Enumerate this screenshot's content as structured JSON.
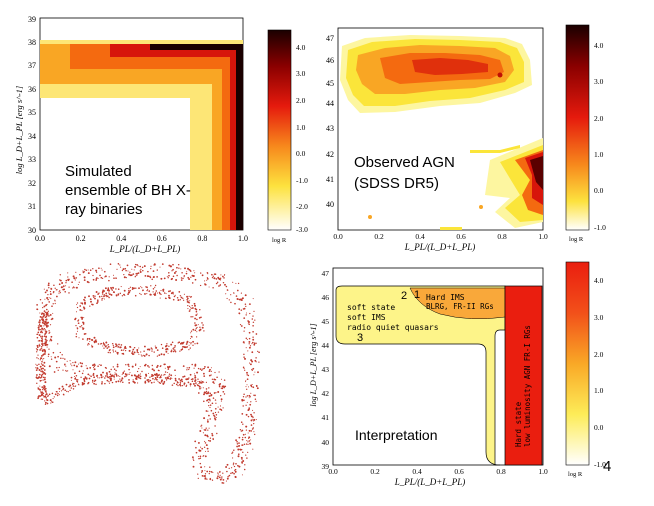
{
  "slide": {
    "page_number": "4"
  },
  "colors": {
    "dark": "#1a0000",
    "red": "#d7150b",
    "orange": "#f46a10",
    "amber": "#f9a624",
    "yellow": "#fbe53a",
    "pale": "#fdf6a0",
    "dots": "#c23a2e"
  },
  "chart_data": [
    {
      "type": "heatmap",
      "id": "simulated",
      "annotation_lines": [
        "Simulated",
        "ensemble of BH X-",
        "ray binaries"
      ],
      "xlabel": "L_PL/(L_D+L_PL)",
      "ylabel": "log L_D+L_PL [erg s^-1]",
      "xlim": [
        0.0,
        1.0
      ],
      "ylim": [
        30,
        39
      ],
      "xticks": [
        "0.0",
        "0.2",
        "0.4",
        "0.6",
        "0.8",
        "1.0"
      ],
      "yticks": [
        "30",
        "31",
        "32",
        "33",
        "34",
        "35",
        "36",
        "37",
        "38",
        "39"
      ],
      "colorbar": {
        "label": "log R",
        "min": -3.0,
        "max": 4.5,
        "ticks": [
          "4.0",
          "3.0",
          "2.0",
          "1.0",
          "0.0",
          "-1.0",
          "-2.0",
          "-3.0"
        ]
      }
    },
    {
      "type": "heatmap",
      "id": "observed",
      "annotation_lines": [
        "Observed AGN",
        "(SDSS DR5)"
      ],
      "xlabel": "L_PL/(L_D+L_PL)",
      "xlim": [
        0.0,
        1.0
      ],
      "ylim": [
        39.5,
        47.5
      ],
      "xticks": [
        "0.0",
        "0.2",
        "0.4",
        "0.6",
        "0.8",
        "1.0"
      ],
      "yticks": [
        "40",
        "41",
        "42",
        "43",
        "44",
        "45",
        "46",
        "47"
      ],
      "colorbar": {
        "label": "log R",
        "min": -1.0,
        "max": 4.5,
        "ticks": [
          "4.0",
          "3.0",
          "2.0",
          "1.0",
          "0.0",
          "-1.0"
        ]
      }
    },
    {
      "type": "scatter",
      "id": "schematic-dots",
      "description_only": true
    },
    {
      "type": "heatmap",
      "id": "interpretation",
      "annotation_lines": [
        "Interpretation"
      ],
      "xlabel": "L_PL/(L_D+L_PL)",
      "ylabel": "log L_D+L_PL [erg s^-1]",
      "xlim": [
        0.0,
        1.0
      ],
      "ylim": [
        39,
        47.5
      ],
      "xticks": [
        "0.0",
        "0.2",
        "0.4",
        "0.6",
        "0.8",
        "1.0"
      ],
      "yticks": [
        "39",
        "40",
        "41",
        "42",
        "43",
        "44",
        "45",
        "46",
        "47"
      ],
      "region_labels": {
        "soft": [
          "soft state",
          "soft IMS",
          "radio quiet quasars"
        ],
        "hard": [
          "Hard IMS",
          "BLRG, FR-II RGs"
        ],
        "hard_state": [
          "Hard state",
          "low luminosity AGN FR-I RGs"
        ],
        "markers": [
          "1",
          "2",
          "3"
        ]
      },
      "colorbar": {
        "label": "log R",
        "min": -1.0,
        "max": 4.5,
        "ticks": [
          "4.0",
          "3.0",
          "2.0",
          "1.0",
          "0.0",
          "-1.0"
        ]
      }
    }
  ]
}
